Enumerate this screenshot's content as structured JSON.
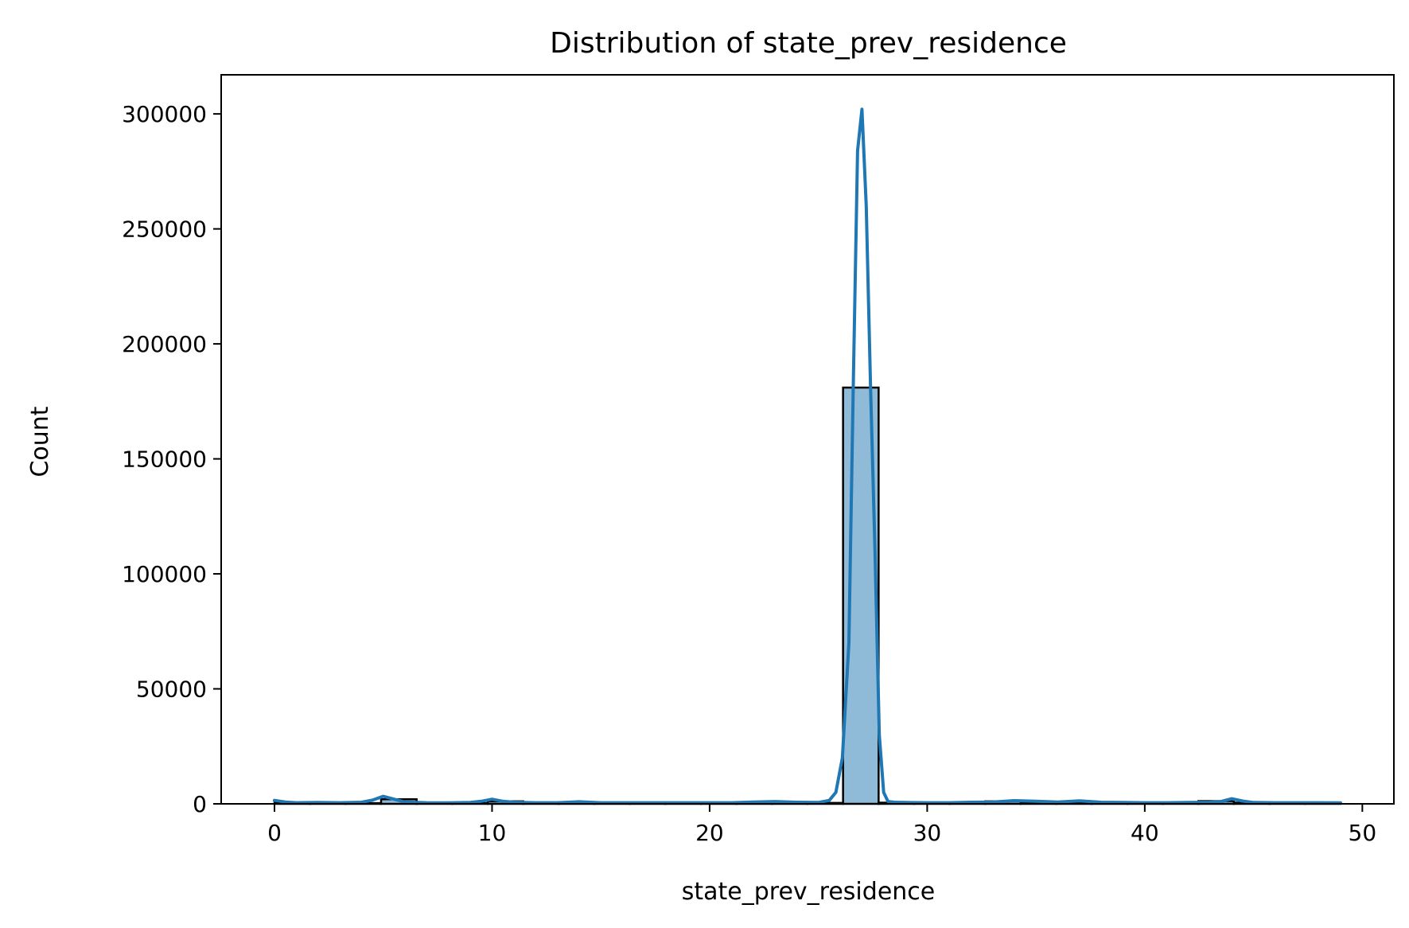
{
  "chart_data": {
    "type": "bar",
    "title": "Distribution of state_prev_residence",
    "xlabel": "state_prev_residence",
    "ylabel": "Count",
    "xlim": [
      -2.45,
      51.45
    ],
    "ylim": [
      0,
      317000
    ],
    "xticks": [
      0,
      10,
      20,
      30,
      40,
      50
    ],
    "yticks": [
      0,
      50000,
      100000,
      150000,
      200000,
      250000,
      300000
    ],
    "bin_width": 1.633,
    "bins": [
      {
        "x0": 0.0,
        "x1": 1.633,
        "count": 500
      },
      {
        "x0": 1.633,
        "x1": 3.267,
        "count": 300
      },
      {
        "x0": 3.267,
        "x1": 4.9,
        "count": 300
      },
      {
        "x0": 4.9,
        "x1": 6.533,
        "count": 2000
      },
      {
        "x0": 6.533,
        "x1": 8.167,
        "count": 200
      },
      {
        "x0": 8.167,
        "x1": 9.8,
        "count": 300
      },
      {
        "x0": 9.8,
        "x1": 11.433,
        "count": 1100
      },
      {
        "x0": 11.433,
        "x1": 13.067,
        "count": 300
      },
      {
        "x0": 13.067,
        "x1": 14.7,
        "count": 600
      },
      {
        "x0": 14.7,
        "x1": 16.333,
        "count": 300
      },
      {
        "x0": 16.333,
        "x1": 17.967,
        "count": 300
      },
      {
        "x0": 17.967,
        "x1": 19.6,
        "count": 300
      },
      {
        "x0": 19.6,
        "x1": 21.233,
        "count": 300
      },
      {
        "x0": 21.233,
        "x1": 22.867,
        "count": 500
      },
      {
        "x0": 22.867,
        "x1": 24.5,
        "count": 700
      },
      {
        "x0": 24.5,
        "x1": 26.133,
        "count": 400
      },
      {
        "x0": 26.133,
        "x1": 27.767,
        "count": 181000
      },
      {
        "x0": 27.767,
        "x1": 29.4,
        "count": 500
      },
      {
        "x0": 29.4,
        "x1": 31.033,
        "count": 300
      },
      {
        "x0": 31.033,
        "x1": 32.667,
        "count": 500
      },
      {
        "x0": 32.667,
        "x1": 34.3,
        "count": 1100
      },
      {
        "x0": 34.3,
        "x1": 35.933,
        "count": 800
      },
      {
        "x0": 35.933,
        "x1": 37.567,
        "count": 600
      },
      {
        "x0": 37.567,
        "x1": 39.2,
        "count": 300
      },
      {
        "x0": 39.2,
        "x1": 40.833,
        "count": 300
      },
      {
        "x0": 40.833,
        "x1": 42.467,
        "count": 300
      },
      {
        "x0": 42.467,
        "x1": 44.1,
        "count": 1200
      },
      {
        "x0": 44.1,
        "x1": 45.733,
        "count": 500
      },
      {
        "x0": 45.733,
        "x1": 47.367,
        "count": 300
      },
      {
        "x0": 47.367,
        "x1": 49.0,
        "count": 300
      }
    ],
    "kde": {
      "name": "KDE",
      "x": [
        0,
        0.5,
        1,
        2,
        3,
        4,
        4.5,
        5,
        5.5,
        6,
        7,
        8,
        9,
        9.5,
        10,
        10.5,
        11,
        12,
        13,
        14,
        15,
        16,
        17,
        18,
        19,
        20,
        21,
        22,
        23,
        24,
        25,
        25.5,
        25.8,
        26.1,
        26.4,
        26.6,
        26.8,
        27,
        27.2,
        27.4,
        27.6,
        27.8,
        28,
        28.2,
        28.5,
        29,
        30,
        31,
        32,
        33,
        34,
        35,
        36,
        37,
        38,
        39,
        40,
        41,
        42,
        43,
        43.5,
        44,
        44.5,
        45,
        46,
        47,
        48,
        49
      ],
      "y": [
        1500,
        800,
        500,
        600,
        500,
        700,
        1600,
        3300,
        2000,
        800,
        500,
        400,
        600,
        1100,
        2000,
        1100,
        700,
        500,
        500,
        900,
        500,
        500,
        500,
        500,
        500,
        500,
        500,
        800,
        1000,
        700,
        600,
        1500,
        5000,
        20000,
        70000,
        180000,
        284000,
        302000,
        260000,
        180000,
        110000,
        30000,
        5000,
        1000,
        700,
        600,
        500,
        500,
        700,
        800,
        1400,
        1100,
        800,
        1300,
        700,
        600,
        500,
        500,
        600,
        700,
        1000,
        2200,
        1200,
        600,
        500,
        500,
        500,
        400
      ]
    },
    "colors": {
      "bar_fill": "#8fbbd9",
      "bar_edge": "#000000",
      "line": "#1f77b4"
    },
    "grid": false,
    "legend": "none"
  }
}
